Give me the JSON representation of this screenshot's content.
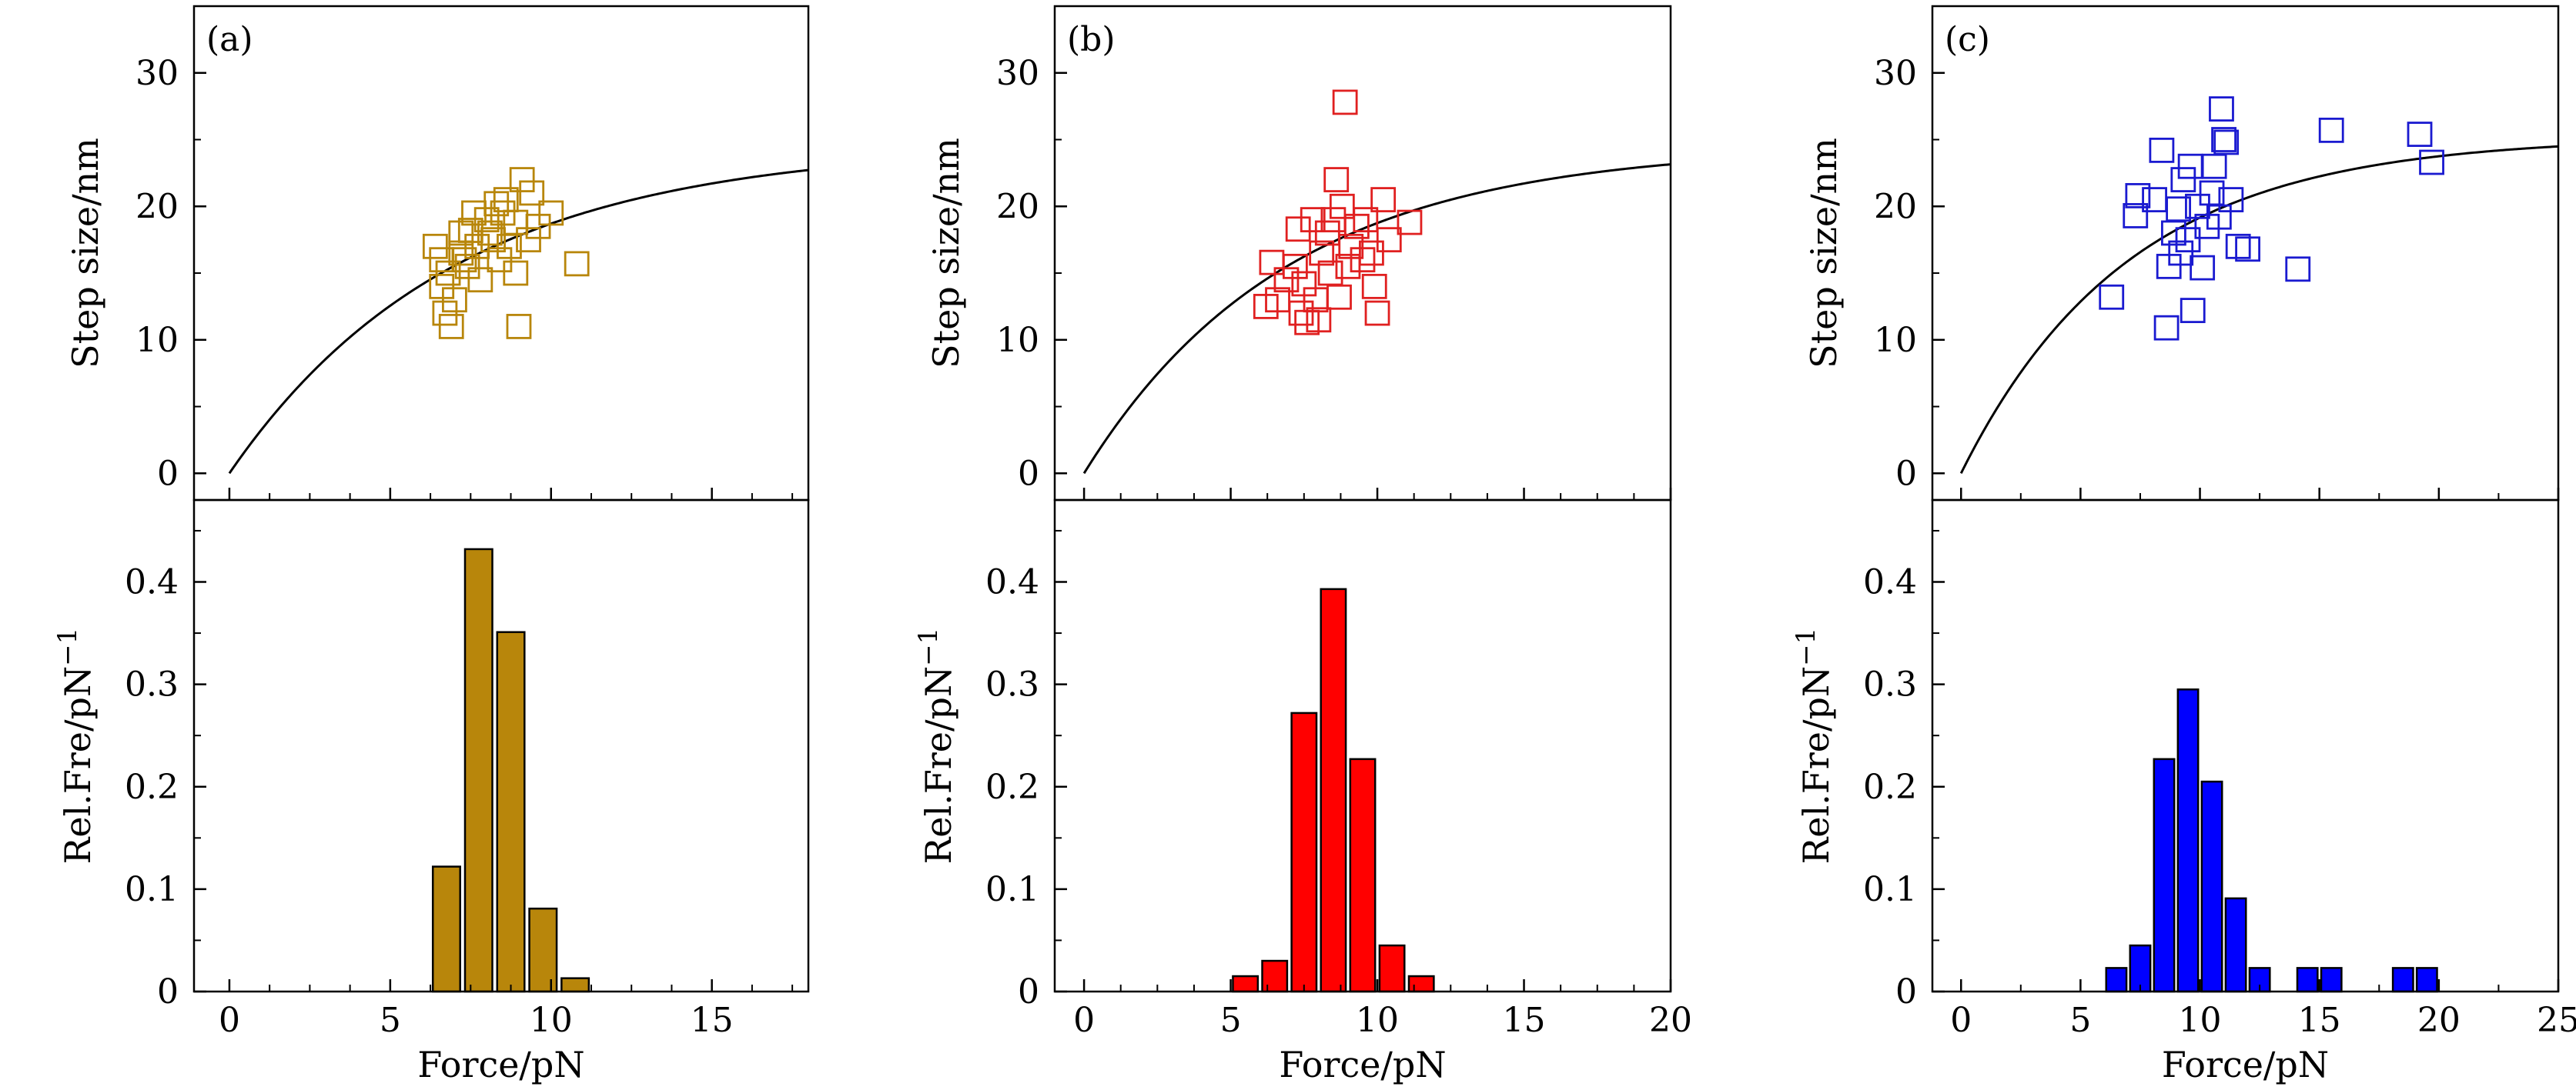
{
  "chart_data": [
    {
      "panel": "(a)",
      "xlabel": "Force/pN",
      "xlim": [
        -1.1,
        18
      ],
      "xticks": [
        0,
        5,
        10,
        15
      ],
      "x_minor_step": 1.25,
      "top": {
        "type": "scatter",
        "ylabel": "Step size/nm",
        "ylim": [
          -2,
          35
        ],
        "yticks": [
          0,
          10,
          20,
          30
        ],
        "marker_color": "#b8860b",
        "fit": {
          "form": "y = A(1 - exp(-x/B))",
          "A": 24.6,
          "B": 7.0
        },
        "points": [
          [
            6.4,
            17
          ],
          [
            7.2,
            18
          ],
          [
            7.6,
            19.5
          ],
          [
            8.0,
            19
          ],
          [
            8.6,
            20.5
          ],
          [
            9.1,
            22
          ],
          [
            9.4,
            21
          ],
          [
            10.0,
            19.5
          ],
          [
            8.2,
            17.5
          ],
          [
            7.3,
            16
          ],
          [
            6.8,
            15
          ],
          [
            6.6,
            14
          ],
          [
            7.0,
            13
          ],
          [
            6.7,
            12
          ],
          [
            6.9,
            11
          ],
          [
            9.0,
            11
          ],
          [
            10.8,
            15.7
          ],
          [
            8.4,
            16
          ],
          [
            8.9,
            15
          ],
          [
            7.7,
            17
          ],
          [
            8.1,
            18
          ],
          [
            8.7,
            17
          ],
          [
            7.4,
            15.5
          ],
          [
            6.6,
            16
          ],
          [
            9.3,
            17.5
          ],
          [
            8.9,
            18.8
          ],
          [
            8.3,
            20.2
          ],
          [
            7.8,
            14.5
          ],
          [
            7.2,
            16.5
          ],
          [
            8.5,
            19.5
          ],
          [
            9.6,
            18.5
          ],
          [
            7.5,
            18.2
          ]
        ]
      },
      "bottom": {
        "type": "bar",
        "ylabel": "Rel.Fre/pN",
        "ylabel_sup": "−1",
        "ylim": [
          0,
          0.48
        ],
        "yticks": [
          0,
          0.1,
          0.2,
          0.3,
          0.4
        ],
        "ytick_labels": [
          "0",
          "0.1",
          "0.2",
          "0.3",
          "0.4"
        ],
        "bar_color": "#b8860b",
        "bar_width": 0.85,
        "bars": [
          [
            6.75,
            0.122
          ],
          [
            7.75,
            0.432
          ],
          [
            8.75,
            0.351
          ],
          [
            9.75,
            0.081
          ],
          [
            10.75,
            0.013
          ]
        ]
      }
    },
    {
      "panel": "(b)",
      "xlabel": "Force/pN",
      "xlim": [
        -1,
        20
      ],
      "xticks": [
        0,
        5,
        10,
        15,
        20
      ],
      "x_minor_step": 1.25,
      "top": {
        "type": "scatter",
        "ylabel": "Step size/nm",
        "ylim": [
          -2,
          35
        ],
        "yticks": [
          0,
          10,
          20,
          30
        ],
        "marker_color": "#e02020",
        "fit": {
          "form": "y = A(1 - exp(-x/B))",
          "A": 24.5,
          "B": 6.9
        },
        "points": [
          [
            6.2,
            12.5
          ],
          [
            6.6,
            13
          ],
          [
            6.9,
            14.5
          ],
          [
            7.2,
            15.5
          ],
          [
            7.4,
            12
          ],
          [
            7.6,
            11.3
          ],
          [
            7.9,
            13
          ],
          [
            8.1,
            16.5
          ],
          [
            8.3,
            18
          ],
          [
            8.5,
            19
          ],
          [
            8.8,
            20
          ],
          [
            8.9,
            27.8
          ],
          [
            8.6,
            22
          ],
          [
            9.0,
            15.5
          ],
          [
            9.3,
            18.5
          ],
          [
            9.6,
            19
          ],
          [
            9.8,
            16.5
          ],
          [
            9.9,
            14
          ],
          [
            10.0,
            12
          ],
          [
            10.2,
            20.5
          ],
          [
            10.4,
            17.5
          ],
          [
            11.1,
            18.8
          ],
          [
            8.0,
            11.5
          ],
          [
            7.5,
            14.2
          ],
          [
            8.4,
            15
          ],
          [
            6.4,
            15.8
          ],
          [
            7.8,
            19
          ],
          [
            9.1,
            17
          ],
          [
            8.7,
            13.2
          ],
          [
            7.3,
            18.3
          ],
          [
            9.5,
            16
          ]
        ]
      },
      "bottom": {
        "type": "bar",
        "ylabel": "Rel.Fre/pN",
        "ylabel_sup": "−1",
        "ylim": [
          0,
          0.48
        ],
        "yticks": [
          0,
          0.1,
          0.2,
          0.3,
          0.4
        ],
        "ytick_labels": [
          "0",
          "0.1",
          "0.2",
          "0.3",
          "0.4"
        ],
        "bar_color": "#ff0000",
        "bar_width": 0.85,
        "bars": [
          [
            5.5,
            0.015
          ],
          [
            6.5,
            0.03
          ],
          [
            7.5,
            0.272
          ],
          [
            8.5,
            0.393
          ],
          [
            9.5,
            0.227
          ],
          [
            10.5,
            0.045
          ],
          [
            11.5,
            0.015
          ]
        ]
      }
    },
    {
      "panel": "(c)",
      "xlabel": "Force/pN",
      "xlim": [
        -1.2,
        25
      ],
      "xticks": [
        0,
        5,
        10,
        15,
        20,
        25
      ],
      "x_minor_step": 2.5,
      "top": {
        "type": "scatter",
        "ylabel": "Step size/nm",
        "ylim": [
          -2,
          35
        ],
        "yticks": [
          0,
          10,
          20,
          30
        ],
        "marker_color": "#1a1ad0",
        "fit": {
          "form": "y = A(1 - exp(-x/B))",
          "A": 25.2,
          "B": 7.0
        },
        "points": [
          [
            6.3,
            13.2
          ],
          [
            7.4,
            20.8
          ],
          [
            7.3,
            19.3
          ],
          [
            8.4,
            24.2
          ],
          [
            8.6,
            10.9
          ],
          [
            8.7,
            15.5
          ],
          [
            8.9,
            18
          ],
          [
            9.1,
            19.8
          ],
          [
            9.2,
            16.5
          ],
          [
            9.3,
            22
          ],
          [
            9.6,
            23
          ],
          [
            9.7,
            12.2
          ],
          [
            9.9,
            20
          ],
          [
            10.1,
            15.4
          ],
          [
            10.3,
            18.5
          ],
          [
            10.5,
            21
          ],
          [
            10.6,
            23
          ],
          [
            10.9,
            27.3
          ],
          [
            11.0,
            25
          ],
          [
            11.3,
            20.5
          ],
          [
            11.6,
            17
          ],
          [
            12.0,
            16.8
          ],
          [
            14.1,
            15.3
          ],
          [
            15.5,
            25.7
          ],
          [
            19.2,
            25.4
          ],
          [
            19.7,
            23.3
          ],
          [
            8.1,
            20.5
          ],
          [
            9.5,
            17.5
          ],
          [
            10.8,
            19.2
          ],
          [
            11.1,
            24.8
          ]
        ]
      },
      "bottom": {
        "type": "bar",
        "ylabel": "Rel.Fre/pN",
        "ylabel_sup": "−1",
        "ylim": [
          0,
          0.48
        ],
        "yticks": [
          0,
          0.1,
          0.2,
          0.3,
          0.4
        ],
        "ytick_labels": [
          "0",
          "0.1",
          "0.2",
          "0.3",
          "0.4"
        ],
        "bar_color": "#0000ff",
        "bar_width": 0.85,
        "bars": [
          [
            6.5,
            0.023
          ],
          [
            7.5,
            0.045
          ],
          [
            8.5,
            0.227
          ],
          [
            9.5,
            0.295
          ],
          [
            10.5,
            0.205
          ],
          [
            11.5,
            0.091
          ],
          [
            12.5,
            0.023
          ],
          [
            14.5,
            0.023
          ],
          [
            15.5,
            0.023
          ],
          [
            18.5,
            0.023
          ],
          [
            19.5,
            0.023
          ]
        ]
      }
    }
  ]
}
